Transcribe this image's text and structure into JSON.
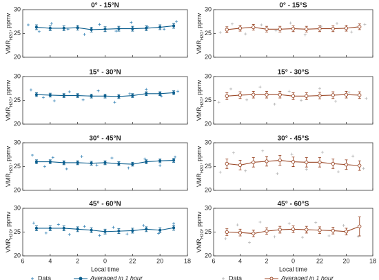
{
  "chart_data": [
    {
      "type": "scatter-errorline",
      "title": "0° - 15°N",
      "ylabel": "VMR",
      "ylabel_sub": "H2O",
      "ylabel_unit": ", ppmv",
      "xlim": [
        6,
        -6
      ],
      "xticks": [
        6,
        4,
        2,
        0,
        -2,
        -4,
        -6
      ],
      "ylim": [
        20,
        30
      ],
      "yticks": [
        20,
        25,
        30
      ],
      "series": [
        {
          "color": "#3a86b8",
          "x": [
            5.6,
            4.8,
            3.9,
            2.7,
            1.5,
            0.4,
            -0.8,
            -1.9,
            -3.1,
            -4.3,
            -5.2
          ],
          "values": [
            26.8,
            25.4,
            27.1,
            25.9,
            24.8,
            26.9,
            25.5,
            27.3,
            26.4,
            25.9,
            27.5
          ]
        },
        {
          "color": "#0b5e8e",
          "x": [
            5,
            4,
            3,
            2,
            1,
            0,
            -1,
            -2,
            -3,
            -4,
            -5
          ],
          "values": [
            26.3,
            26.1,
            26.1,
            26.2,
            25.8,
            25.9,
            26.0,
            26.0,
            26.1,
            26.3,
            26.6
          ],
          "errors": [
            0.5,
            0.5,
            0.5,
            0.5,
            0.5,
            0.5,
            0.5,
            0.5,
            0.5,
            0.5,
            0.5
          ]
        }
      ]
    },
    {
      "type": "scatter-errorline",
      "title": "0° - 15°S",
      "ylabel": "VMR",
      "ylabel_sub": "H2O",
      "ylabel_unit": ", ppmv",
      "xlim": [
        6,
        -6
      ],
      "xticks": [
        6,
        4,
        2,
        0,
        -2,
        -4,
        -6
      ],
      "ylim": [
        20,
        30
      ],
      "yticks": [
        20,
        25,
        30
      ],
      "series": [
        {
          "color": "#b5b5b5",
          "x": [
            5.5,
            4.6,
            3.6,
            2.4,
            1.3,
            0.2,
            -0.9,
            -2.1,
            -3.3,
            -4.4,
            -5.4
          ],
          "values": [
            25.2,
            27.0,
            24.9,
            26.8,
            25.6,
            27.2,
            24.7,
            26.5,
            27.1,
            25.3,
            26.9
          ]
        },
        {
          "color": "#9c4a2a",
          "x": [
            5,
            4,
            3,
            2,
            1,
            0,
            -1,
            -2,
            -3,
            -4,
            -5
          ],
          "values": [
            25.8,
            26.1,
            26.3,
            25.9,
            25.9,
            26.0,
            25.9,
            26.0,
            26.0,
            26.1,
            26.4
          ],
          "errors": [
            0.6,
            0.6,
            0.6,
            0.6,
            0.6,
            0.6,
            0.6,
            0.6,
            0.6,
            0.6,
            0.6
          ]
        }
      ]
    },
    {
      "type": "scatter-errorline",
      "title": "15° - 30°N",
      "ylabel": "VMR",
      "ylabel_sub": "H2O",
      "ylabel_unit": ", ppmv",
      "xlim": [
        6,
        -6
      ],
      "xticks": [
        6,
        4,
        2,
        0,
        -2,
        -4,
        -6
      ],
      "ylim": [
        20,
        30
      ],
      "yticks": [
        20,
        25,
        30
      ],
      "series": [
        {
          "color": "#3a86b8",
          "x": [
            5.4,
            4.5,
            3.7,
            2.6,
            1.6,
            0.5,
            -0.7,
            -1.8,
            -3.0,
            -4.1,
            -5.3
          ],
          "values": [
            27.2,
            25.6,
            24.9,
            26.8,
            25.1,
            27.0,
            24.6,
            26.4,
            27.3,
            25.9,
            26.9
          ]
        },
        {
          "color": "#0b5e8e",
          "x": [
            5,
            4,
            3,
            2,
            1,
            0,
            -1,
            -2,
            -3,
            -4,
            -5
          ],
          "values": [
            26.2,
            26.1,
            26.0,
            26.0,
            25.9,
            25.9,
            25.8,
            26.0,
            26.4,
            26.4,
            26.6
          ],
          "errors": [
            0.4,
            0.4,
            0.4,
            0.4,
            0.4,
            0.4,
            0.4,
            0.4,
            0.4,
            0.4,
            0.4
          ]
        }
      ]
    },
    {
      "type": "scatter-errorline",
      "title": "15° - 30°S",
      "ylabel": "VMR",
      "ylabel_sub": "H2O",
      "ylabel_unit": ", ppmv",
      "xlim": [
        6,
        -6
      ],
      "xticks": [
        6,
        4,
        2,
        0,
        -2,
        -4,
        -6
      ],
      "ylim": [
        20,
        30
      ],
      "yticks": [
        20,
        25,
        30
      ],
      "series": [
        {
          "color": "#b5b5b5",
          "x": [
            5.6,
            4.7,
            3.5,
            2.5,
            1.4,
            0.3,
            -0.6,
            -2.0,
            -3.2,
            -4.2,
            -5.5
          ],
          "values": [
            24.6,
            27.4,
            25.1,
            27.8,
            24.2,
            26.9,
            25.0,
            27.5,
            24.8,
            26.7,
            25.4
          ]
        },
        {
          "color": "#9c4a2a",
          "x": [
            5,
            4,
            3,
            2,
            1,
            0,
            -1,
            -2,
            -3,
            -4,
            -5
          ],
          "values": [
            25.9,
            26.1,
            26.2,
            26.2,
            26.2,
            25.9,
            25.9,
            26.0,
            26.1,
            26.2,
            26.1
          ],
          "errors": [
            0.7,
            0.7,
            0.7,
            0.7,
            0.7,
            0.7,
            0.7,
            0.7,
            0.7,
            0.7,
            0.7
          ]
        }
      ]
    },
    {
      "type": "scatter-errorline",
      "title": "30° - 45°N",
      "ylabel": "VMR",
      "ylabel_sub": "H2O",
      "ylabel_unit": ", ppmv",
      "xlim": [
        6,
        -6
      ],
      "xticks": [
        6,
        4,
        2,
        0,
        -2,
        -4,
        -6
      ],
      "ylim": [
        20,
        30
      ],
      "yticks": [
        20,
        25,
        30
      ],
      "series": [
        {
          "color": "#3a86b8",
          "x": [
            5.3,
            4.4,
            3.8,
            2.8,
            1.7,
            0.6,
            -0.5,
            -1.7,
            -2.9,
            -4.0,
            -5.1
          ],
          "values": [
            27.4,
            25.0,
            26.9,
            24.5,
            27.1,
            25.3,
            26.8,
            24.7,
            26.6,
            25.2,
            27.0
          ]
        },
        {
          "color": "#0b5e8e",
          "x": [
            5,
            4,
            3,
            2,
            1,
            0,
            -1,
            -2,
            -3,
            -4,
            -5
          ],
          "values": [
            26.0,
            26.0,
            25.8,
            25.8,
            25.7,
            25.8,
            25.6,
            25.5,
            26.0,
            26.2,
            26.3
          ],
          "errors": [
            0.4,
            0.4,
            0.4,
            0.4,
            0.4,
            0.4,
            0.4,
            0.4,
            0.4,
            0.4,
            0.4
          ]
        }
      ]
    },
    {
      "type": "scatter-errorline",
      "title": "30° - 45°S",
      "ylabel": "VMR",
      "ylabel_sub": "H2O",
      "ylabel_unit": ", ppmv",
      "xlim": [
        6,
        -6
      ],
      "xticks": [
        6,
        4,
        2,
        0,
        -2,
        -4,
        -6
      ],
      "ylim": [
        20,
        30
      ],
      "yticks": [
        20,
        25,
        30
      ],
      "series": [
        {
          "color": "#b5b5b5",
          "x": [
            5.5,
            4.5,
            3.6,
            2.3,
            1.2,
            0.1,
            -1.0,
            -2.2,
            -3.4,
            -4.5,
            -5.3
          ],
          "values": [
            23.8,
            27.9,
            24.1,
            28.3,
            23.5,
            27.6,
            24.4,
            28.0,
            23.9,
            27.2,
            24.6
          ]
        },
        {
          "color": "#9c4a2a",
          "x": [
            5,
            4,
            3,
            2,
            1,
            0,
            -1,
            -2,
            -3,
            -4,
            -5
          ],
          "values": [
            25.6,
            25.3,
            25.9,
            26.1,
            26.3,
            26.0,
            25.9,
            25.9,
            25.6,
            25.4,
            25.2
          ],
          "errors": [
            1.0,
            1.0,
            1.0,
            1.0,
            1.0,
            1.0,
            1.0,
            1.0,
            1.0,
            1.0,
            1.0
          ]
        }
      ]
    },
    {
      "type": "scatter-errorline",
      "title": "45° - 60°N",
      "ylabel": "VMR",
      "ylabel_sub": "H2O",
      "ylabel_unit": ", ppmv",
      "xlabel": "Local time",
      "xlim": [
        6,
        -6
      ],
      "xticks": [
        6,
        4,
        2,
        0,
        {
          "value": -2,
          "label": "22"
        },
        {
          "value": -4,
          "label": "20"
        },
        {
          "value": -6,
          "label": "18"
        }
      ],
      "ylim": [
        20,
        30
      ],
      "yticks": [
        20,
        25,
        30
      ],
      "legend": "bottom",
      "series": [
        {
          "name": "Data",
          "color": "#3a86b8",
          "x": [
            5.2,
            4.3,
            3.4,
            2.6,
            1.5,
            0.4,
            -0.6,
            -1.6,
            -2.8,
            -3.9,
            -5.0
          ],
          "values": [
            26.9,
            24.8,
            26.6,
            24.5,
            26.2,
            24.3,
            26.0,
            24.6,
            26.4,
            24.7,
            26.8
          ]
        },
        {
          "name": "Averaged in 1 hour",
          "color": "#0b5e8e",
          "x": [
            5,
            4,
            3,
            2,
            1,
            0,
            -1,
            -2,
            -3,
            -4,
            -5
          ],
          "values": [
            25.8,
            25.8,
            25.8,
            25.6,
            25.4,
            25.1,
            25.2,
            25.3,
            25.6,
            25.4,
            25.9
          ],
          "errors": [
            0.5,
            0.5,
            0.5,
            0.5,
            0.5,
            0.5,
            0.5,
            0.5,
            0.5,
            0.5,
            0.5
          ]
        }
      ]
    },
    {
      "type": "scatter-errorline",
      "title": "45° - 60°S",
      "ylabel": "VMR",
      "ylabel_sub": "H2O",
      "ylabel_unit": ", ppmv",
      "xlabel": "Local time",
      "xlim": [
        6,
        -6
      ],
      "xticks": [
        6,
        4,
        2,
        0,
        {
          "value": -2,
          "label": "22"
        },
        {
          "value": -4,
          "label": "20"
        },
        {
          "value": -6,
          "label": "18"
        }
      ],
      "ylim": [
        20,
        30
      ],
      "yticks": [
        20,
        25,
        30
      ],
      "legend": "bottom",
      "series": [
        {
          "name": "Data",
          "color": "#b5b5b5",
          "x": [
            5.1,
            4.2,
            3.3,
            2.5,
            1.4,
            0.3,
            -0.7,
            -1.7,
            -2.7,
            -3.8,
            -4.9
          ],
          "values": [
            23.6,
            26.5,
            22.8,
            27.1,
            24.0,
            26.8,
            23.9,
            27.0,
            24.2,
            26.4,
            24.1
          ]
        },
        {
          "name": "Averaged in 1 hour",
          "color": "#9c4a2a",
          "x": [
            5,
            4,
            3,
            2,
            1,
            0,
            -1,
            -2,
            -3,
            -4,
            -5
          ],
          "values": [
            25.0,
            24.9,
            24.7,
            25.2,
            25.5,
            25.6,
            25.5,
            25.4,
            25.3,
            25.1,
            26.2
          ],
          "errors": [
            0.7,
            0.7,
            0.7,
            0.7,
            0.7,
            0.7,
            0.7,
            0.7,
            0.7,
            0.7,
            2.0
          ]
        }
      ]
    }
  ]
}
